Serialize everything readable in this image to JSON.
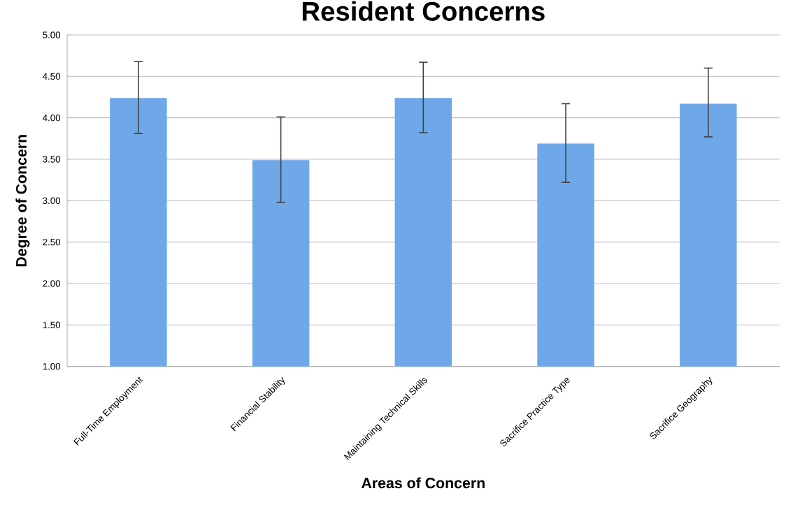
{
  "chart_data": {
    "type": "bar",
    "title": "Resident Concerns",
    "xlabel": "Areas of Concern",
    "ylabel": "Degree of Concern",
    "categories": [
      "Full-Time Employment",
      "Financial Stability",
      "Maintaining Technical Skills",
      "Sacrifice Practice Type",
      "Sacrifice Geography"
    ],
    "values": [
      4.24,
      3.49,
      4.24,
      3.69,
      4.17
    ],
    "errors": [
      [
        3.81,
        4.68
      ],
      [
        2.98,
        4.01
      ],
      [
        3.82,
        4.67
      ],
      [
        3.22,
        4.17
      ],
      [
        3.77,
        4.6
      ]
    ],
    "color": "#6fa8e8",
    "ylim": [
      1,
      5
    ],
    "yticks": [
      {
        "value": 1,
        "label": "1.00"
      },
      {
        "value": 1.5,
        "label": "1.50"
      },
      {
        "value": 2,
        "label": "2.00"
      },
      {
        "value": 2.5,
        "label": "2.50"
      },
      {
        "value": 3,
        "label": "3.00"
      },
      {
        "value": 3.5,
        "label": "3.50"
      },
      {
        "value": 4,
        "label": "4.00"
      },
      {
        "value": 4.5,
        "label": "4.50"
      },
      {
        "value": 5,
        "label": "5.00"
      }
    ],
    "grid": "y"
  }
}
